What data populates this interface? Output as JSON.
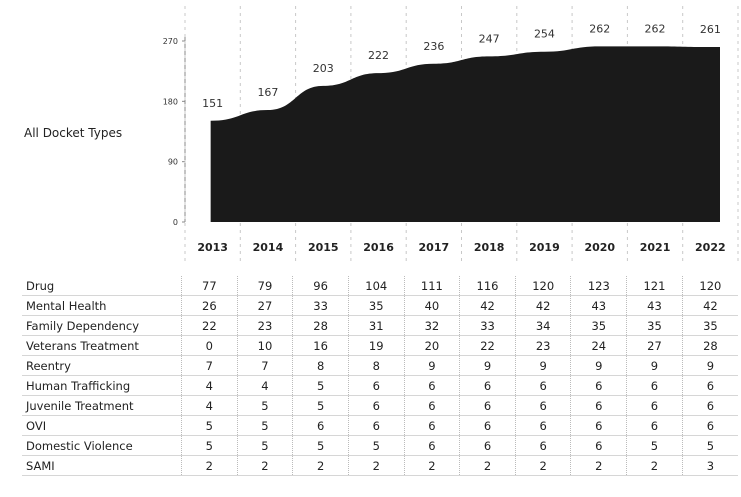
{
  "left_label": "All Docket Types",
  "chart_data": {
    "type": "area",
    "x": [
      "2013",
      "2014",
      "2015",
      "2016",
      "2017",
      "2018",
      "2019",
      "2020",
      "2021",
      "2022"
    ],
    "values": [
      151,
      167,
      203,
      222,
      236,
      247,
      254,
      262,
      262,
      261
    ],
    "yticks": [
      0,
      90,
      180,
      270
    ],
    "ylim": [
      0,
      300
    ],
    "fill_color": "#1a1a1a",
    "grid": false
  },
  "table": {
    "rows": [
      {
        "name": "Drug",
        "values": [
          77,
          79,
          96,
          104,
          111,
          116,
          120,
          123,
          121,
          120
        ]
      },
      {
        "name": "Mental Health",
        "values": [
          26,
          27,
          33,
          35,
          40,
          42,
          42,
          43,
          43,
          42
        ]
      },
      {
        "name": "Family Dependency",
        "values": [
          22,
          23,
          28,
          31,
          32,
          33,
          34,
          35,
          35,
          35
        ]
      },
      {
        "name": "Veterans Treatment",
        "values": [
          0,
          10,
          16,
          19,
          20,
          22,
          23,
          24,
          27,
          28
        ]
      },
      {
        "name": "Reentry",
        "values": [
          7,
          7,
          8,
          8,
          9,
          9,
          9,
          9,
          9,
          9
        ]
      },
      {
        "name": "Human Trafficking",
        "values": [
          4,
          4,
          5,
          6,
          6,
          6,
          6,
          6,
          6,
          6
        ]
      },
      {
        "name": "Juvenile Treatment",
        "values": [
          4,
          5,
          5,
          6,
          6,
          6,
          6,
          6,
          6,
          6
        ]
      },
      {
        "name": "OVI",
        "values": [
          5,
          5,
          6,
          6,
          6,
          6,
          6,
          6,
          6,
          6
        ]
      },
      {
        "name": "Domestic Violence",
        "values": [
          5,
          5,
          5,
          5,
          6,
          6,
          6,
          6,
          5,
          5
        ]
      },
      {
        "name": "SAMI",
        "values": [
          2,
          2,
          2,
          2,
          2,
          2,
          2,
          2,
          2,
          3
        ]
      }
    ]
  }
}
